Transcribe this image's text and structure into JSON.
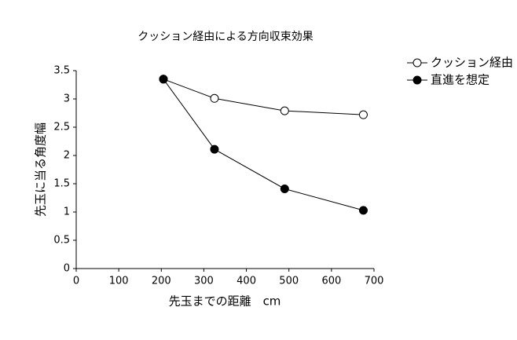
{
  "chart_data": {
    "type": "line",
    "title": "クッション経由による方向収束効果",
    "x_label": "先玉までの距離　cm",
    "y_label": "先玉に当る角度幅",
    "x": [
      205,
      325,
      490,
      675
    ],
    "series": [
      {
        "name": "クッション経由",
        "color": "#000000",
        "marker": "open",
        "values": [
          3.35,
          3.01,
          2.79,
          2.72
        ]
      },
      {
        "name": "直進を想定",
        "color": "#000000",
        "marker": "filled",
        "values": [
          3.35,
          2.11,
          1.41,
          1.03
        ]
      }
    ],
    "xlim": [
      0,
      700
    ],
    "xticks": [
      0,
      100,
      200,
      300,
      400,
      500,
      600,
      700
    ],
    "ylim": [
      0,
      3.5
    ],
    "yticks": [
      0,
      0.5,
      1,
      1.5,
      2,
      2.5,
      3,
      3.5
    ],
    "grid": false,
    "legend": "upper right"
  }
}
